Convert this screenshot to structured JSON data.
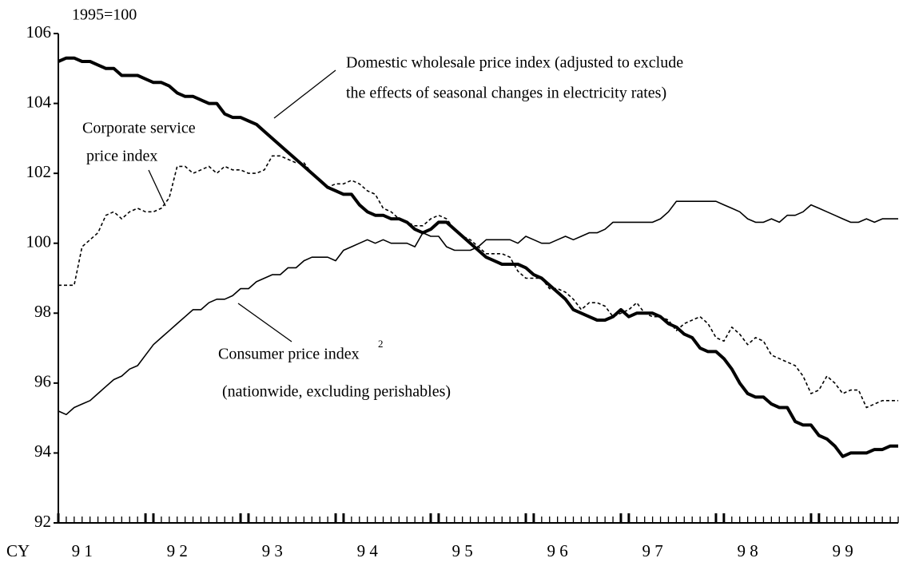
{
  "chart_data": {
    "type": "line",
    "unit_label": "1995=100",
    "x_axis_label": "CY",
    "categories": [
      null,
      null,
      null,
      "9 1",
      null,
      null,
      null,
      null,
      null,
      null,
      null,
      null,
      null,
      null,
      null,
      "9 2",
      null,
      null,
      null,
      null,
      null,
      null,
      null,
      null,
      null,
      null,
      null,
      "9 3",
      null,
      null,
      null,
      null,
      null,
      null,
      null,
      null,
      null,
      null,
      null,
      "9 4",
      null,
      null,
      null,
      null,
      null,
      null,
      null,
      null,
      null,
      null,
      null,
      "9 5",
      null,
      null,
      null,
      null,
      null,
      null,
      null,
      null,
      null,
      null,
      null,
      "9 6",
      null,
      null,
      null,
      null,
      null,
      null,
      null,
      null,
      null,
      null,
      null,
      "9 7",
      null,
      null,
      null,
      null,
      null,
      null,
      null,
      null,
      null,
      null,
      null,
      "9 8",
      null,
      null,
      null,
      null,
      null,
      null,
      null,
      null,
      null,
      null,
      null,
      "9 9",
      null,
      null,
      null,
      null,
      null,
      null,
      null
    ],
    "series": [
      {
        "color": "#000000",
        "line_width": 4,
        "dash": "none",
        "values": [
          105.2,
          105.3,
          105.3,
          105.2,
          105.2,
          105.1,
          105.0,
          105.0,
          104.8,
          104.8,
          104.8,
          104.7,
          104.6,
          104.6,
          104.5,
          104.3,
          104.2,
          104.2,
          104.1,
          104.0,
          104.0,
          103.7,
          103.6,
          103.6,
          103.5,
          103.4,
          103.2,
          103.0,
          102.8,
          102.6,
          102.4,
          102.2,
          102.0,
          101.8,
          101.6,
          101.5,
          101.4,
          101.4,
          101.1,
          100.9,
          100.8,
          100.8,
          100.7,
          100.7,
          100.6,
          100.4,
          100.3,
          100.4,
          100.6,
          100.6,
          100.4,
          100.2,
          100.0,
          99.8,
          99.6,
          99.5,
          99.4,
          99.4,
          99.4,
          99.3,
          99.1,
          99.0,
          98.8,
          98.6,
          98.4,
          98.1,
          98.0,
          97.9,
          97.8,
          97.8,
          97.9,
          98.1,
          97.9,
          98.0,
          98.0,
          98.0,
          97.9,
          97.7,
          97.6,
          97.4,
          97.3,
          97.0,
          96.9,
          96.9,
          96.7,
          96.4,
          96.0,
          95.7,
          95.6,
          95.6,
          95.4,
          95.3,
          95.3,
          94.9,
          94.8,
          94.8,
          94.5,
          94.4,
          94.2,
          93.9,
          94.0,
          94.0,
          94.0,
          94.1,
          94.1,
          94.2,
          94.2
        ]
      },
      {
        "color": "#000000",
        "line_width": 1.6,
        "dash": "4 3",
        "values": [
          98.8,
          98.8,
          98.8,
          99.9,
          100.1,
          100.3,
          100.8,
          100.9,
          100.7,
          100.9,
          101.0,
          100.9,
          100.9,
          101.0,
          101.3,
          102.2,
          102.2,
          102.0,
          102.1,
          102.2,
          102.0,
          102.2,
          102.1,
          102.1,
          102.0,
          102.0,
          102.1,
          102.5,
          102.5,
          102.4,
          102.3,
          102.3,
          102.0,
          101.8,
          101.6,
          101.7,
          101.7,
          101.8,
          101.7,
          101.5,
          101.4,
          101.0,
          100.9,
          100.7,
          100.6,
          100.5,
          100.5,
          100.7,
          100.8,
          100.7,
          100.4,
          100.2,
          100.1,
          99.9,
          99.7,
          99.7,
          99.7,
          99.6,
          99.2,
          99.0,
          99.0,
          99.0,
          98.7,
          98.7,
          98.6,
          98.4,
          98.1,
          98.3,
          98.3,
          98.2,
          97.9,
          98.0,
          98.1,
          98.3,
          98.0,
          97.9,
          97.9,
          97.8,
          97.5,
          97.7,
          97.8,
          97.9,
          97.7,
          97.3,
          97.2,
          97.6,
          97.4,
          97.1,
          97.3,
          97.2,
          96.8,
          96.7,
          96.6,
          96.5,
          96.2,
          95.7,
          95.8,
          96.2,
          96.0,
          95.7,
          95.8,
          95.8,
          95.3,
          95.4,
          95.5,
          95.5,
          95.5
        ]
      },
      {
        "color": "#000000",
        "line_width": 1.6,
        "dash": "none",
        "values": [
          95.2,
          95.1,
          95.3,
          95.4,
          95.5,
          95.7,
          95.9,
          96.1,
          96.2,
          96.4,
          96.5,
          96.8,
          97.1,
          97.3,
          97.5,
          97.7,
          97.9,
          98.1,
          98.1,
          98.3,
          98.4,
          98.4,
          98.5,
          98.7,
          98.7,
          98.9,
          99.0,
          99.1,
          99.1,
          99.3,
          99.3,
          99.5,
          99.6,
          99.6,
          99.6,
          99.5,
          99.8,
          99.9,
          100.0,
          100.1,
          100.0,
          100.1,
          100.0,
          100.0,
          100.0,
          99.9,
          100.3,
          100.2,
          100.2,
          99.9,
          99.8,
          99.8,
          99.8,
          99.9,
          100.1,
          100.1,
          100.1,
          100.1,
          100.0,
          100.2,
          100.1,
          100.0,
          100.0,
          100.1,
          100.2,
          100.1,
          100.2,
          100.3,
          100.3,
          100.4,
          100.6,
          100.6,
          100.6,
          100.6,
          100.6,
          100.6,
          100.7,
          100.9,
          101.2,
          101.2,
          101.2,
          101.2,
          101.2,
          101.2,
          101.1,
          101.0,
          100.9,
          100.7,
          100.6,
          100.6,
          100.7,
          100.6,
          100.8,
          100.8,
          100.9,
          101.1,
          101.0,
          100.9,
          100.8,
          100.7,
          100.6,
          100.6,
          100.7,
          100.6,
          100.7,
          100.7,
          100.7
        ]
      }
    ],
    "annotations": [
      "Domestic wholesale price index (adjusted to exclude",
      " the effects of seasonal changes in electricity rates)",
      "Corporate service",
      "price index",
      "Consumer price index",
      "2",
      "(nationwide, excluding perishables)"
    ],
    "ylim": [
      92,
      106
    ],
    "yticks": [
      92,
      94,
      96,
      98,
      100,
      102,
      104,
      106
    ],
    "grid": false
  }
}
